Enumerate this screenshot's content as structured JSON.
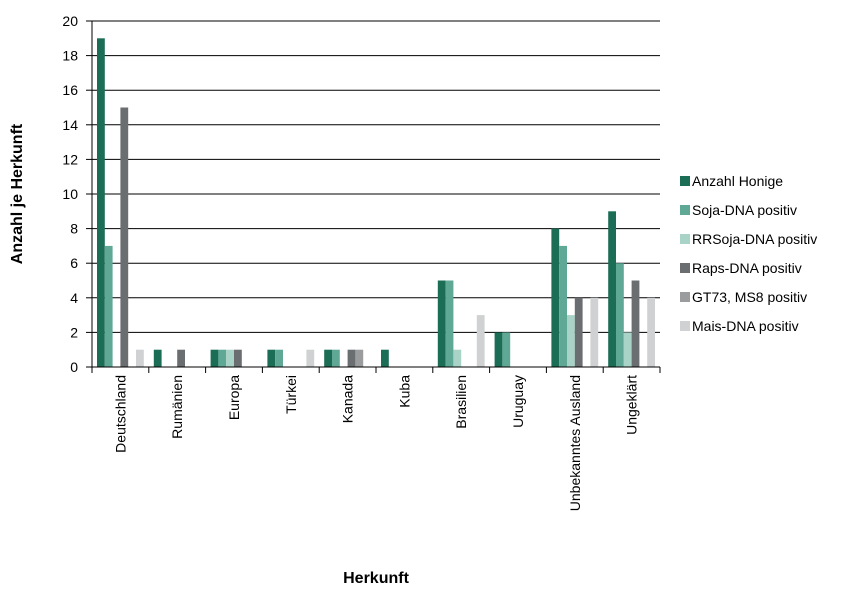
{
  "chart_data": {
    "type": "bar",
    "title": "",
    "xlabel": "Herkunft",
    "ylabel": "Anzahl je Herkunft",
    "ylim": [
      0,
      20
    ],
    "yticks": [
      0,
      2,
      4,
      6,
      8,
      10,
      12,
      14,
      16,
      18,
      20
    ],
    "grid": "horizontal",
    "legend_position": "right",
    "categories": [
      "Deutschland",
      "Rumänien",
      "Europa",
      "Türkei",
      "Kanada",
      "Kuba",
      "Brasilien",
      "Uruguay",
      "Unbekanntes Ausland",
      "Ungeklärt"
    ],
    "series": [
      {
        "name": "Anzahl Honige",
        "color": "#1b6e55",
        "values": [
          19,
          1,
          1,
          1,
          1,
          1,
          5,
          2,
          8,
          9
        ]
      },
      {
        "name": "Soja-DNA positiv",
        "color": "#5fa896",
        "values": [
          7,
          0,
          1,
          1,
          1,
          0,
          5,
          2,
          7,
          6
        ]
      },
      {
        "name": "RRSoja-DNA positiv",
        "color": "#a9d3c6",
        "values": [
          0,
          0,
          1,
          0,
          0,
          0,
          1,
          0,
          3,
          2
        ]
      },
      {
        "name": "Raps-DNA positiv",
        "color": "#6b6e70",
        "values": [
          15,
          1,
          1,
          0,
          1,
          0,
          0,
          0,
          4,
          5
        ]
      },
      {
        "name": "GT73, MS8 positiv",
        "color": "#9a9c9e",
        "values": [
          0,
          0,
          0,
          0,
          1,
          0,
          0,
          0,
          0,
          0
        ]
      },
      {
        "name": "Mais-DNA positiv",
        "color": "#cfd1d2",
        "values": [
          1,
          0,
          0,
          1,
          0,
          0,
          3,
          0,
          4,
          4
        ]
      }
    ]
  }
}
